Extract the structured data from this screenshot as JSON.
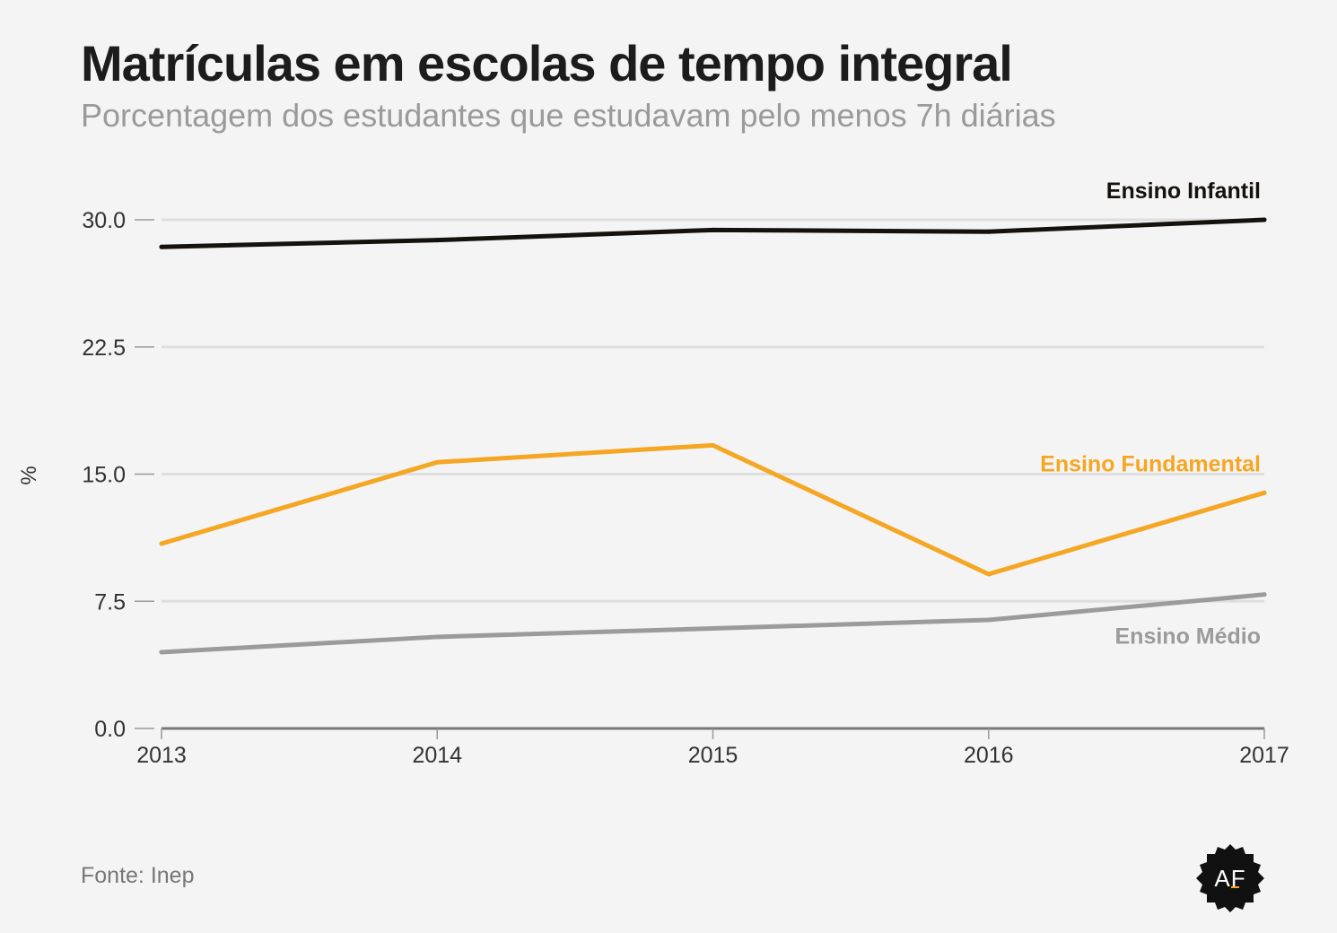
{
  "header": {
    "title": "Matrículas em escolas de tempo integral",
    "subtitle": "Porcentagem dos estudantes que estudavam pelo menos 7h diárias"
  },
  "footer": {
    "source": "Fonte: Inep",
    "logo_text": "AF"
  },
  "colors": {
    "background": "#f4f4f4",
    "infantil": "#15110d",
    "fundamental": "#f5a623",
    "medio": "#9b9b9b",
    "grid": "#dedede",
    "axis": "#777777"
  },
  "chart_data": {
    "type": "line",
    "title": "Matrículas em escolas de tempo integral",
    "subtitle": "Porcentagem dos estudantes que estudavam pelo menos 7h diárias",
    "xlabel": "",
    "ylabel": "%",
    "x": [
      "2013",
      "2014",
      "2015",
      "2016",
      "2017"
    ],
    "ylim": [
      0,
      30
    ],
    "yticks": [
      "0.0",
      "7.5",
      "15.0",
      "22.5",
      "30.0"
    ],
    "ytick_values": [
      0,
      7.5,
      15,
      22.5,
      30
    ],
    "grid": true,
    "series": [
      {
        "name": "Ensino Infantil",
        "color": "#15110d",
        "values": [
          28.4,
          28.8,
          29.4,
          29.3,
          30.0
        ]
      },
      {
        "name": "Ensino Fundamental",
        "color": "#f5a623",
        "values": [
          10.9,
          15.7,
          16.7,
          9.1,
          13.9
        ]
      },
      {
        "name": "Ensino Médio",
        "color": "#9b9b9b",
        "values": [
          4.5,
          5.4,
          5.9,
          6.4,
          7.9
        ]
      }
    ]
  }
}
